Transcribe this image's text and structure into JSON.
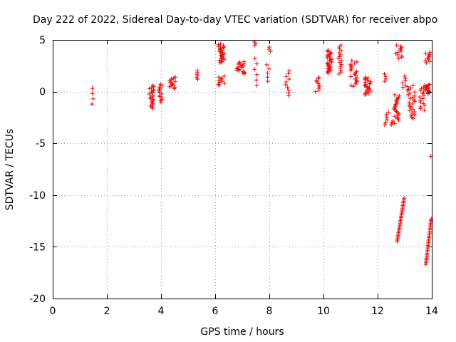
{
  "chart_data": {
    "type": "scatter",
    "title": "Day 222 of 2022, Sidereal Day-to-day VTEC variation (SDTVAR) for receiver abpo",
    "xlabel": "GPS time / hours",
    "ylabel": "SDTVAR / TECUs",
    "xlim": [
      0,
      14
    ],
    "ylim": [
      -20,
      5
    ],
    "xticks": [
      0,
      2,
      4,
      6,
      8,
      10,
      12,
      14
    ],
    "yticks": [
      -20,
      -15,
      -10,
      -5,
      0,
      5
    ],
    "grid": true,
    "marker": "+",
    "color": "#ff0000",
    "series": [
      {
        "name": "SDTVAR",
        "clusters": [
          {
            "x": [
              1.45,
              1.5
            ],
            "y": [
              -1.2,
              0.3
            ],
            "n": 4
          },
          {
            "x": [
              3.55,
              3.75
            ],
            "y": [
              -1.6,
              0.6
            ],
            "n": 22
          },
          {
            "x": [
              3.9,
              4.05
            ],
            "y": [
              -1.0,
              0.7
            ],
            "n": 14
          },
          {
            "x": [
              4.3,
              4.55
            ],
            "y": [
              0.3,
              1.4
            ],
            "n": 14
          },
          {
            "x": [
              5.3,
              5.4
            ],
            "y": [
              1.2,
              2.0
            ],
            "n": 6
          },
          {
            "x": [
              6.1,
              6.35
            ],
            "y": [
              2.8,
              4.6
            ],
            "n": 26
          },
          {
            "x": [
              6.1,
              6.35
            ],
            "y": [
              0.6,
              1.5
            ],
            "n": 10
          },
          {
            "x": [
              6.8,
              7.1
            ],
            "y": [
              1.7,
              2.9
            ],
            "n": 20
          },
          {
            "x": [
              7.45,
              7.55
            ],
            "y": [
              4.5,
              4.8
            ],
            "n": 3
          },
          {
            "x": [
              7.45,
              7.55
            ],
            "y": [
              0.6,
              3.2
            ],
            "n": 6
          },
          {
            "x": [
              7.9,
              8.05
            ],
            "y": [
              3.9,
              4.3
            ],
            "n": 3
          },
          {
            "x": [
              7.9,
              8.05
            ],
            "y": [
              1.0,
              2.6
            ],
            "n": 5
          },
          {
            "x": [
              8.6,
              8.75
            ],
            "y": [
              -0.4,
              2.0
            ],
            "n": 10
          },
          {
            "x": [
              9.7,
              9.85
            ],
            "y": [
              0.0,
              1.4
            ],
            "n": 10
          },
          {
            "x": [
              10.1,
              10.3
            ],
            "y": [
              1.8,
              4.0
            ],
            "n": 28
          },
          {
            "x": [
              10.55,
              10.7
            ],
            "y": [
              1.7,
              4.5
            ],
            "n": 16
          },
          {
            "x": [
              11.0,
              11.25
            ],
            "y": [
              0.5,
              3.0
            ],
            "n": 22
          },
          {
            "x": [
              11.5,
              11.75
            ],
            "y": [
              -0.3,
              1.4
            ],
            "n": 22
          },
          {
            "x": [
              12.25,
              12.4
            ],
            "y": [
              -3.2,
              -2.0
            ],
            "n": 6
          },
          {
            "x": [
              12.25,
              12.4
            ],
            "y": [
              1.0,
              1.7
            ],
            "n": 4
          },
          {
            "x": [
              12.5,
              12.8
            ],
            "y": [
              -3.2,
              -0.3
            ],
            "n": 26
          },
          {
            "x": [
              12.65,
              12.9
            ],
            "y": [
              3.2,
              4.5
            ],
            "n": 12
          },
          {
            "x": [
              12.9,
              13.05
            ],
            "y": [
              0.4,
              1.5
            ],
            "n": 6
          },
          {
            "x": [
              13.1,
              13.4
            ],
            "y": [
              -2.6,
              0.6
            ],
            "n": 26
          },
          {
            "x": [
              13.55,
              13.75
            ],
            "y": [
              -1.8,
              0.6
            ],
            "n": 16
          },
          {
            "x": [
              13.75,
              13.95
            ],
            "y": [
              -0.2,
              0.7
            ],
            "n": 16
          },
          {
            "x": [
              13.75,
              13.95
            ],
            "y": [
              2.8,
              3.8
            ],
            "n": 10
          },
          {
            "x": [
              13.95,
              13.98
            ],
            "y": [
              -6.3,
              -6.2
            ],
            "n": 1
          }
        ],
        "lines": [
          {
            "x": [
              12.72,
              12.98
            ],
            "y": [
              -14.5,
              -10.3
            ],
            "n": 30
          },
          {
            "x": [
              13.78,
              13.98
            ],
            "y": [
              -16.7,
              -12.3
            ],
            "n": 30
          }
        ]
      }
    ]
  }
}
